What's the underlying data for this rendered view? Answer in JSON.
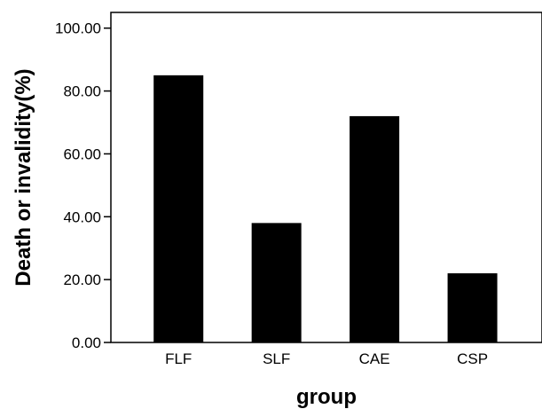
{
  "chart_data": {
    "type": "bar",
    "categories": [
      "FLF",
      "SLF",
      "CAE",
      "CSP"
    ],
    "values": [
      85,
      38,
      72,
      22
    ],
    "xlabel": "group",
    "ylabel": "Death or invalidity(%)",
    "ylim": [
      0,
      105
    ],
    "yticks": [
      0,
      20,
      40,
      60,
      80,
      100
    ],
    "ytick_labels": [
      "0.00",
      "20.00",
      "40.00",
      "60.00",
      "80.00",
      "100.00"
    ],
    "bar_color": "#000000",
    "grid": false,
    "legend": "none"
  }
}
